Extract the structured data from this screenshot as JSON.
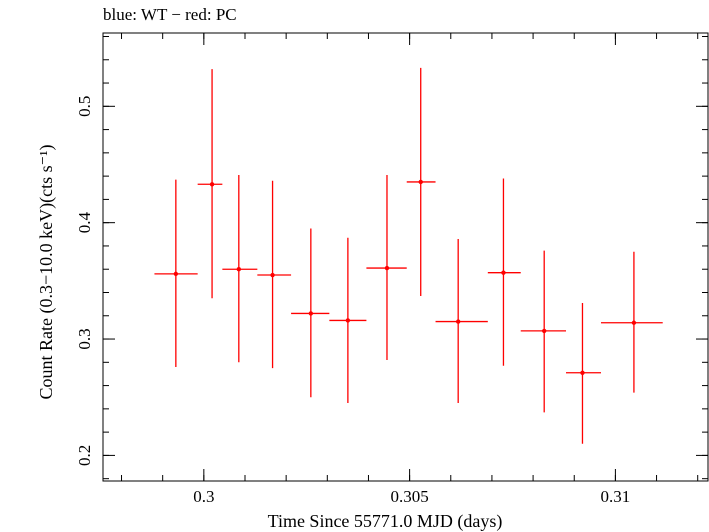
{
  "chart_data": {
    "type": "scatter",
    "title": "blue: WT − red: PC",
    "xlabel": "Time Since 55771.0 MJD (days)",
    "ylabel": "Count Rate (0.3−10.0 keV)(cts s⁻¹)",
    "xlim": [
      0.29755,
      0.31225
    ],
    "ylim": [
      0.178,
      0.563
    ],
    "x_ticks": [
      {
        "value": 0.3,
        "label": "0.3"
      },
      {
        "value": 0.305,
        "label": "0.305"
      },
      {
        "value": 0.31,
        "label": "0.31"
      }
    ],
    "y_ticks": [
      {
        "value": 0.2,
        "label": "0.2"
      },
      {
        "value": 0.3,
        "label": "0.3"
      },
      {
        "value": 0.4,
        "label": "0.4"
      },
      {
        "value": 0.5,
        "label": "0.5"
      }
    ],
    "x_minor_step": 0.001,
    "y_minor_step": 0.02,
    "series": [
      {
        "color": "#ff0000",
        "points": [
          {
            "x": 0.29932,
            "y": 0.356,
            "xlo": 0.2988,
            "xhi": 0.29985,
            "ylo": 0.276,
            "yhi": 0.437
          },
          {
            "x": 0.3002,
            "y": 0.433,
            "xlo": 0.29985,
            "xhi": 0.30045,
            "ylo": 0.335,
            "yhi": 0.532
          },
          {
            "x": 0.30085,
            "y": 0.36,
            "xlo": 0.30045,
            "xhi": 0.3013,
            "ylo": 0.28,
            "yhi": 0.441
          },
          {
            "x": 0.30167,
            "y": 0.355,
            "xlo": 0.3013,
            "xhi": 0.30212,
            "ylo": 0.275,
            "yhi": 0.436
          },
          {
            "x": 0.3026,
            "y": 0.322,
            "xlo": 0.30212,
            "xhi": 0.30305,
            "ylo": 0.25,
            "yhi": 0.395
          },
          {
            "x": 0.3035,
            "y": 0.316,
            "xlo": 0.30305,
            "xhi": 0.30395,
            "ylo": 0.245,
            "yhi": 0.387
          },
          {
            "x": 0.30445,
            "y": 0.361,
            "xlo": 0.30395,
            "xhi": 0.30493,
            "ylo": 0.282,
            "yhi": 0.441
          },
          {
            "x": 0.30527,
            "y": 0.435,
            "xlo": 0.30493,
            "xhi": 0.30563,
            "ylo": 0.337,
            "yhi": 0.533
          },
          {
            "x": 0.30618,
            "y": 0.315,
            "xlo": 0.30563,
            "xhi": 0.3069,
            "ylo": 0.245,
            "yhi": 0.386
          },
          {
            "x": 0.30728,
            "y": 0.357,
            "xlo": 0.3069,
            "xhi": 0.3077,
            "ylo": 0.277,
            "yhi": 0.438
          },
          {
            "x": 0.30827,
            "y": 0.307,
            "xlo": 0.3077,
            "xhi": 0.3088,
            "ylo": 0.237,
            "yhi": 0.376
          },
          {
            "x": 0.3092,
            "y": 0.271,
            "xlo": 0.3088,
            "xhi": 0.30965,
            "ylo": 0.21,
            "yhi": 0.331
          },
          {
            "x": 0.31045,
            "y": 0.314,
            "xlo": 0.30965,
            "xhi": 0.31115,
            "ylo": 0.254,
            "yhi": 0.375
          }
        ]
      }
    ],
    "grid": false
  }
}
